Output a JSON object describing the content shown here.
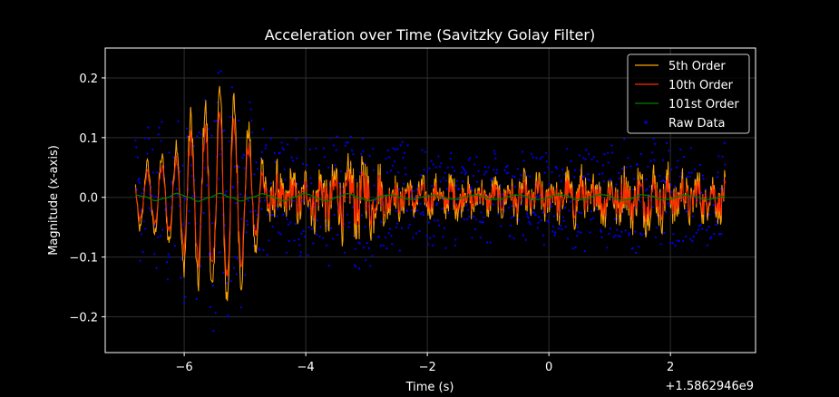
{
  "chart_data": {
    "type": "line",
    "title": "Acceleration over Time (Savitzky Golay Filter)",
    "xlabel": "Time (s)",
    "ylabel": "Magnitude (x-axis)",
    "x_offset_label": "+1.5862946e9",
    "xlim": [
      -7.3,
      3.4
    ],
    "ylim": [
      -0.26,
      0.25
    ],
    "x_ticks": [
      -6,
      -4,
      -2,
      0,
      2
    ],
    "x_tick_labels": [
      "−6",
      "−4",
      "−2",
      "0",
      "2"
    ],
    "y_ticks": [
      0.2,
      0.1,
      0.0,
      -0.1,
      -0.2
    ],
    "y_tick_labels": [
      "0.2",
      "0.1",
      "0.0",
      "−0.1",
      "−0.2"
    ],
    "grid": true,
    "legend_position": "top-right",
    "x_range": [
      -6.8,
      2.9
    ],
    "series": [
      {
        "name": "5th Order",
        "color": "#ffa500",
        "style": "line",
        "envelope": [
          [
            -6.8,
            0.06
          ],
          [
            -6.5,
            0.07
          ],
          [
            -6.2,
            0.09
          ],
          [
            -6.0,
            0.14
          ],
          [
            -5.8,
            0.17
          ],
          [
            -5.6,
            0.18
          ],
          [
            -5.4,
            0.21
          ],
          [
            -5.2,
            0.19
          ],
          [
            -5.0,
            0.15
          ],
          [
            -4.8,
            0.1
          ],
          [
            -4.6,
            0.07
          ],
          [
            -4.2,
            0.06
          ],
          [
            -4.0,
            0.06
          ],
          [
            -3.6,
            0.08
          ],
          [
            -3.0,
            0.09
          ],
          [
            -2.6,
            0.05
          ],
          [
            -2.0,
            0.04
          ],
          [
            -1.6,
            0.05
          ],
          [
            -1.0,
            0.04
          ],
          [
            -0.4,
            0.05
          ],
          [
            0.0,
            0.05
          ],
          [
            0.4,
            0.06
          ],
          [
            1.0,
            0.06
          ],
          [
            1.6,
            0.07
          ],
          [
            2.2,
            0.06
          ],
          [
            2.9,
            0.05
          ]
        ]
      },
      {
        "name": "10th Order",
        "color": "#ff2a00",
        "style": "line",
        "envelope": [
          [
            -6.8,
            0.05
          ],
          [
            -6.5,
            0.06
          ],
          [
            -6.2,
            0.08
          ],
          [
            -6.0,
            0.12
          ],
          [
            -5.8,
            0.15
          ],
          [
            -5.6,
            0.16
          ],
          [
            -5.4,
            0.19
          ],
          [
            -5.2,
            0.17
          ],
          [
            -5.0,
            0.13
          ],
          [
            -4.8,
            0.08
          ],
          [
            -4.6,
            0.05
          ],
          [
            -4.2,
            0.045
          ],
          [
            -4.0,
            0.045
          ],
          [
            -3.6,
            0.06
          ],
          [
            -3.0,
            0.07
          ],
          [
            -2.6,
            0.04
          ],
          [
            -2.0,
            0.03
          ],
          [
            -1.6,
            0.035
          ],
          [
            -1.0,
            0.03
          ],
          [
            -0.4,
            0.035
          ],
          [
            0.0,
            0.04
          ],
          [
            0.4,
            0.045
          ],
          [
            1.0,
            0.045
          ],
          [
            1.6,
            0.05
          ],
          [
            2.2,
            0.045
          ],
          [
            2.9,
            0.04
          ]
        ]
      },
      {
        "name": "101st Order",
        "color": "#008000",
        "style": "line",
        "envelope": [
          [
            -6.8,
            0.008
          ],
          [
            -6.0,
            0.012
          ],
          [
            -5.0,
            0.01
          ],
          [
            -4.0,
            0.012
          ],
          [
            -3.0,
            0.01
          ],
          [
            -2.0,
            0.006
          ],
          [
            -1.0,
            0.008
          ],
          [
            0.0,
            0.008
          ],
          [
            1.0,
            0.01
          ],
          [
            2.0,
            0.008
          ],
          [
            2.9,
            0.006
          ]
        ]
      },
      {
        "name": "Raw Data",
        "color": "#0000ff",
        "style": "scatter",
        "envelope": [
          [
            -6.8,
            0.1
          ],
          [
            -6.2,
            0.13
          ],
          [
            -5.8,
            0.18
          ],
          [
            -5.4,
            0.22
          ],
          [
            -5.0,
            0.17
          ],
          [
            -4.6,
            0.11
          ],
          [
            -4.0,
            0.1
          ],
          [
            -3.0,
            0.11
          ],
          [
            -2.0,
            0.08
          ],
          [
            -1.0,
            0.08
          ],
          [
            0.0,
            0.08
          ],
          [
            1.0,
            0.09
          ],
          [
            2.0,
            0.09
          ],
          [
            2.9,
            0.08
          ]
        ]
      }
    ]
  }
}
